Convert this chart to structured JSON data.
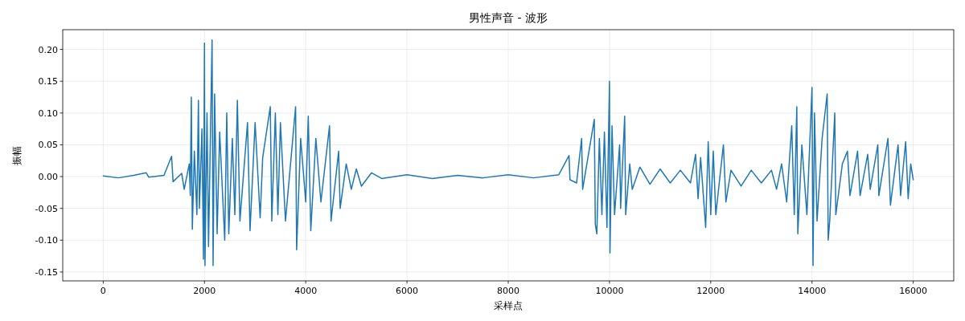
{
  "chart_data": {
    "type": "line",
    "title": "男性声音 - 波形",
    "xlabel": "采样点",
    "ylabel": "振幅",
    "grid": true,
    "xlim": [
      -800,
      16800
    ],
    "xticks": [
      0,
      2000,
      4000,
      6000,
      8000,
      10000,
      12000,
      14000,
      16000
    ],
    "ylim": [
      -0.164,
      0.231
    ],
    "yticks": [
      {
        "value": -0.15,
        "label": "-0.15"
      },
      {
        "value": -0.1,
        "label": "-0.10"
      },
      {
        "value": -0.05,
        "label": "-0.05"
      },
      {
        "value": 0,
        "label": "0.00"
      },
      {
        "value": 0.05,
        "label": "0.05"
      },
      {
        "value": 0.1,
        "label": "0.10"
      },
      {
        "value": 0.15,
        "label": "0.15"
      },
      {
        "value": 0.2,
        "label": "0.20"
      }
    ],
    "series": [
      {
        "color": "#1f77b4",
        "x": [
          0,
          300,
          600,
          850,
          900,
          1200,
          1350,
          1380,
          1550,
          1600,
          1700,
          1720,
          1740,
          1760,
          1800,
          1850,
          1880,
          1900,
          1950,
          1980,
          2000,
          2010,
          2050,
          2080,
          2150,
          2170,
          2200,
          2250,
          2300,
          2400,
          2440,
          2480,
          2550,
          2600,
          2650,
          2700,
          2850,
          2900,
          3000,
          3100,
          3150,
          3300,
          3330,
          3400,
          3450,
          3500,
          3600,
          3800,
          3820,
          3900,
          4000,
          4050,
          4100,
          4200,
          4300,
          4470,
          4500,
          4650,
          4680,
          4800,
          4900,
          5000,
          5100,
          5300,
          5500,
          6000,
          6500,
          7000,
          7500,
          8000,
          8500,
          9000,
          9200,
          9220,
          9350,
          9450,
          9470,
          9700,
          9720,
          9750,
          9800,
          9850,
          9900,
          9950,
          10000,
          10010,
          10050,
          10100,
          10200,
          10220,
          10300,
          10320,
          10400,
          10450,
          10600,
          10800,
          11000,
          11200,
          11400,
          11600,
          11700,
          11750,
          11800,
          11900,
          11950,
          12000,
          12050,
          12100,
          12250,
          12300,
          12400,
          12600,
          12800,
          13000,
          13200,
          13300,
          13400,
          13500,
          13600,
          13650,
          13700,
          13720,
          13800,
          13900,
          14000,
          14020,
          14050,
          14100,
          14200,
          14300,
          14320,
          14350,
          14450,
          14470,
          14600,
          14700,
          14750,
          14900,
          14950,
          15100,
          15150,
          15300,
          15320,
          15500,
          15550,
          15700,
          15750,
          15850,
          15900,
          15950,
          16000
        ],
        "values": [
          0.001,
          -0.002,
          0.002,
          0.006,
          -0.001,
          0.002,
          0.032,
          -0.008,
          0.005,
          -0.02,
          0.02,
          -0.03,
          0.125,
          -0.083,
          0.04,
          -0.06,
          0.12,
          -0.05,
          0.075,
          -0.13,
          0.21,
          -0.14,
          0.1,
          -0.11,
          0.215,
          -0.14,
          0.13,
          -0.09,
          0.07,
          -0.1,
          0.1,
          -0.09,
          0.06,
          -0.06,
          0.12,
          -0.07,
          0.085,
          -0.085,
          0.085,
          -0.065,
          0.03,
          0.11,
          -0.07,
          0.1,
          -0.06,
          0.085,
          -0.07,
          0.11,
          -0.115,
          0.06,
          -0.04,
          0.095,
          -0.085,
          0.06,
          -0.04,
          0.08,
          -0.07,
          0.04,
          -0.05,
          0.02,
          -0.02,
          0.012,
          -0.015,
          0.006,
          -0.003,
          0.003,
          -0.003,
          0.002,
          -0.002,
          0.003,
          -0.002,
          0.003,
          0.033,
          -0.005,
          -0.01,
          0.06,
          -0.02,
          0.09,
          -0.075,
          -0.09,
          0.06,
          -0.06,
          0.07,
          -0.08,
          0.15,
          -0.12,
          0.08,
          -0.06,
          0.05,
          -0.05,
          0.095,
          -0.06,
          0.02,
          -0.02,
          0.015,
          -0.012,
          0.012,
          -0.01,
          0.01,
          -0.01,
          0.035,
          -0.035,
          0.03,
          -0.08,
          0.055,
          -0.06,
          0.04,
          -0.06,
          0.05,
          -0.04,
          0.01,
          -0.015,
          0.01,
          -0.01,
          0.01,
          -0.02,
          0.02,
          -0.04,
          0.08,
          -0.06,
          0.11,
          -0.09,
          0.05,
          -0.06,
          0.14,
          -0.14,
          0.1,
          -0.07,
          0.06,
          0.13,
          -0.1,
          -0.07,
          0.1,
          -0.06,
          0.02,
          0.04,
          -0.03,
          0.04,
          -0.03,
          0.035,
          -0.02,
          0.05,
          -0.03,
          0.06,
          -0.045,
          0.05,
          -0.03,
          0.055,
          -0.035,
          0.02,
          -0.005
        ]
      }
    ]
  }
}
